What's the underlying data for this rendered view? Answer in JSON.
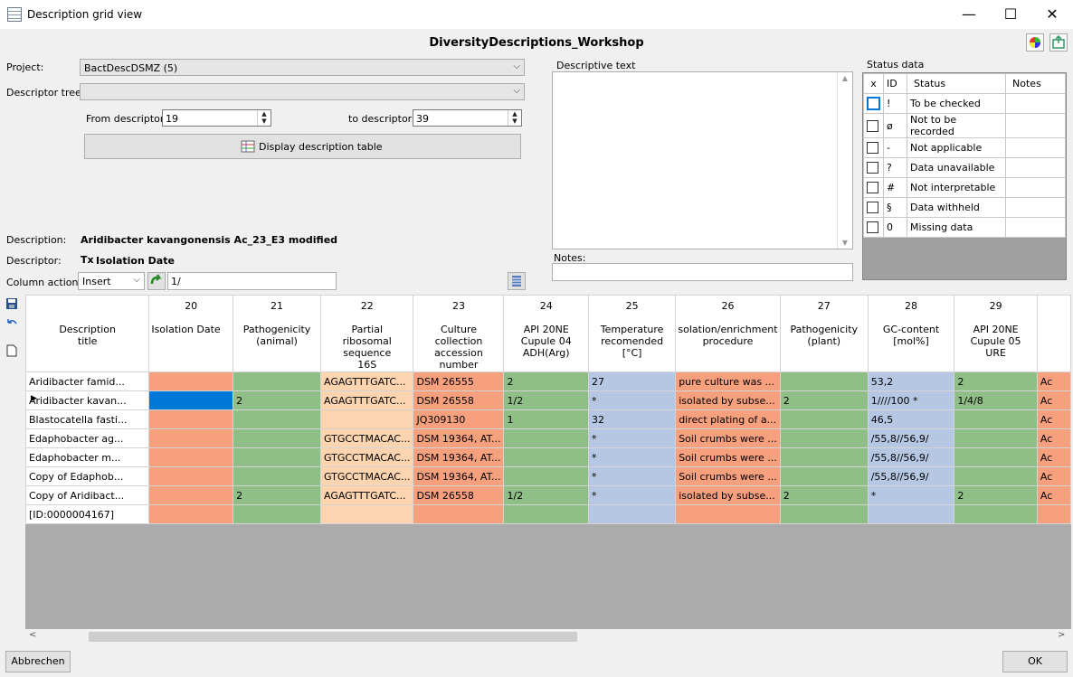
{
  "window": {
    "title": "Description grid view",
    "minimize": "—",
    "maximize": "☐",
    "close": "✕"
  },
  "header": {
    "title": "DiversityDescriptions_Workshop"
  },
  "form": {
    "project_label": "Project:",
    "project_value": "BactDescDSMZ (5)",
    "tree_label": "Descriptor tree:",
    "tree_value": "",
    "from_label": "From descriptor:",
    "from_value": "19",
    "to_label": "to descriptor:",
    "to_value": "39",
    "display_button": "Display description table",
    "description_label": "Description:",
    "description_value": "Aridibacter kavangonensis Ac_23_E3 modified",
    "descriptor_label": "Descriptor:",
    "descriptor_icon": "Tx",
    "descriptor_value": "Isolation Date",
    "column_action_label": "Column action:",
    "column_action_value": "Insert",
    "column_action_input": "1/"
  },
  "descriptive_text": {
    "label": "Descriptive text",
    "notes_label": "Notes:"
  },
  "status_data": {
    "label": "Status data",
    "headers": [
      "x",
      "ID",
      "Status",
      "Notes"
    ],
    "rows": [
      {
        "id": "!",
        "status": "To be checked"
      },
      {
        "id": "ø",
        "status": "Not to be recorded"
      },
      {
        "id": "-",
        "status": "Not applicable"
      },
      {
        "id": "?",
        "status": "Data unavailable"
      },
      {
        "id": "#",
        "status": "Not interpretable"
      },
      {
        "id": "§",
        "status": "Data withheld"
      },
      {
        "id": "0",
        "status": "Missing data"
      }
    ]
  },
  "grid": {
    "columns": [
      {
        "num": "",
        "name": "Description\ntitle"
      },
      {
        "num": "20",
        "name": "Isolation Date"
      },
      {
        "num": "21",
        "name": "Pathogenicity\n(animal)"
      },
      {
        "num": "22",
        "name": "Partial\nribosomal\nsequence\n16S"
      },
      {
        "num": "23",
        "name": "Culture\ncollection\naccession\nnumber"
      },
      {
        "num": "24",
        "name": "API 20NE\nCupule 04\nADH(Arg)"
      },
      {
        "num": "25",
        "name": "Temperature\nrecomended\n[°C]"
      },
      {
        "num": "26",
        "name": "solation/enrichment\nprocedure"
      },
      {
        "num": "27",
        "name": "Pathogenicity\n(plant)"
      },
      {
        "num": "28",
        "name": "GC-content\n[mol%]"
      },
      {
        "num": "29",
        "name": "API 20NE\nCupule 05\nURE"
      },
      {
        "num": "",
        "name": ""
      }
    ],
    "rows": [
      [
        "Aridibacter famid...",
        "",
        "",
        "AGAGTTTGATC...",
        "DSM 26555",
        "2",
        "27",
        "pure culture was ...",
        "",
        "53,2",
        "2",
        "Ac"
      ],
      [
        "Aridibacter kavan...",
        "",
        "2",
        "AGAGTTTGATC...",
        "DSM 26558",
        "1/2",
        "*",
        "isolated by subse...",
        "2",
        "1////100 *",
        "1/4/8",
        "Ac"
      ],
      [
        "Blastocatella fasti...",
        "",
        "",
        "",
        "JQ309130",
        "1",
        "32",
        "direct plating of a...",
        "",
        "46,5",
        "",
        "Ac"
      ],
      [
        "Edaphobacter ag...",
        "",
        "",
        "GTGCCTMACAC...",
        "DSM 19364, AT...",
        "",
        "*",
        "Soil crumbs were ...",
        "",
        "/55,8//56,9/",
        "",
        "Ac"
      ],
      [
        "Edaphobacter m...",
        "",
        "",
        "GTGCCTMACAC...",
        " DSM 19364, AT...",
        "",
        "*",
        "Soil crumbs were ...",
        "",
        "/55,8//56,9/",
        "",
        "Ac"
      ],
      [
        "Copy of Edaphob...",
        "",
        "",
        "GTGCCTMACAC...",
        "DSM 19364, AT...",
        "",
        "*",
        "Soil crumbs were ...",
        "",
        "/55,8//56,9/",
        "",
        "Ac"
      ],
      [
        "Copy of Aridibact...",
        "",
        "2",
        "AGAGTTTGATC...",
        "DSM 26558",
        "1/2",
        "*",
        "isolated by subse...",
        "2",
        "*",
        "2",
        "Ac"
      ],
      [
        "[ID:0000004167]",
        "",
        "",
        "",
        "",
        "",
        "",
        "",
        "",
        "",
        "",
        ""
      ]
    ],
    "current_row_index": 1
  },
  "colors": {
    "orange": "#f7a07e",
    "green": "#8fbf86",
    "peach": "#fcd5b0",
    "blue": "#b5c7e3",
    "selected": "#0078d7"
  },
  "footer": {
    "cancel": "Abbrechen",
    "ok": "OK"
  }
}
